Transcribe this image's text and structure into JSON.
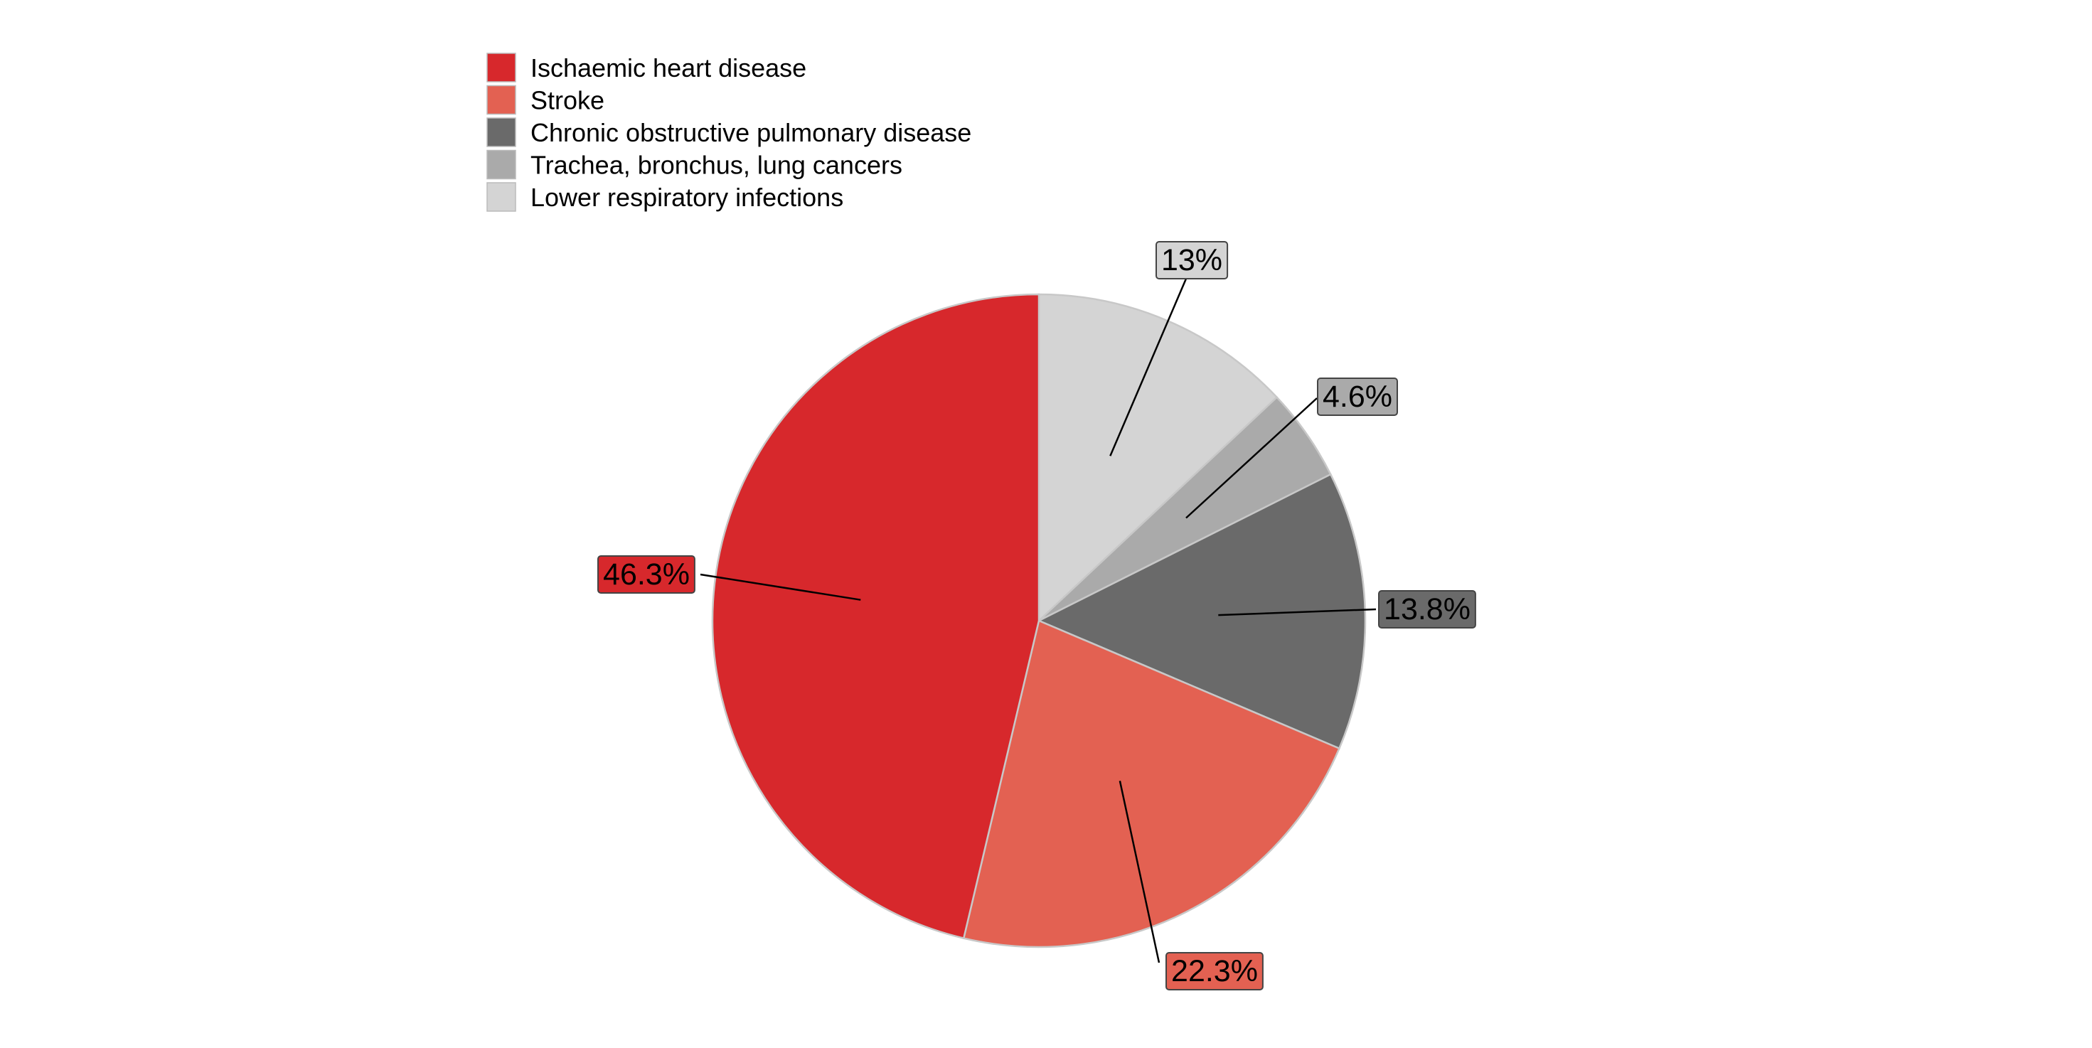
{
  "chart_data": {
    "type": "pie",
    "title": "",
    "legend_position": "top-left",
    "slices": [
      {
        "label": "Ischaemic heart disease",
        "value": 46.3,
        "display": "46.3%",
        "color": "#d7282c"
      },
      {
        "label": "Stroke",
        "value": 22.3,
        "display": "22.3%",
        "color": "#e36152"
      },
      {
        "label": "Chronic obstructive pulmonary disease",
        "value": 13.8,
        "display": "13.8%",
        "color": "#6a6a6a"
      },
      {
        "label": "Trachea, bronchus, lung cancers",
        "value": 4.6,
        "display": "4.6%",
        "color": "#aaaaaa"
      },
      {
        "label": "Lower respiratory infections",
        "value": 13.0,
        "display": "13%",
        "color": "#d4d4d4"
      }
    ],
    "draw_order": [
      4,
      3,
      2,
      1,
      0
    ]
  }
}
